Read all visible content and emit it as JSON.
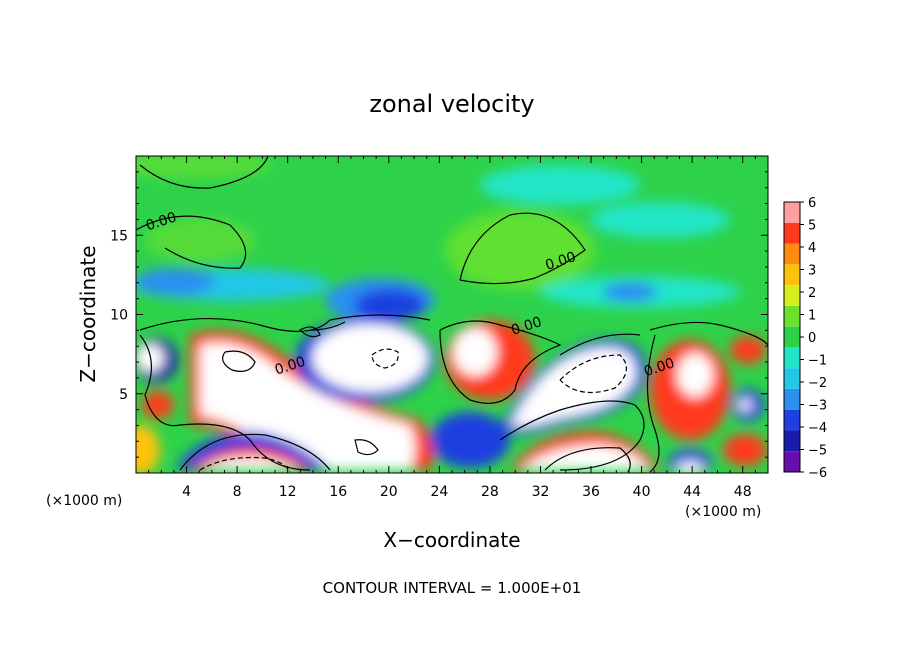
{
  "chart_data": {
    "type": "heatmap",
    "title": "zonal velocity",
    "xlabel": "X−coordinate",
    "ylabel": "Z−coordinate",
    "x_unit_left": "(×1000 m)",
    "x_unit_right": "(×1000 m)",
    "footer": "CONTOUR INTERVAL = 1.000E+01",
    "xlim": [
      0,
      50
    ],
    "ylim": [
      0,
      20
    ],
    "x_ticks": [
      4,
      8,
      12,
      16,
      20,
      24,
      28,
      32,
      36,
      40,
      44,
      48
    ],
    "x_tick_labels": [
      "4",
      "8",
      "12",
      "16",
      "20",
      "24",
      "28",
      "32",
      "36",
      "40",
      "44",
      "48"
    ],
    "y_ticks": [
      5,
      10,
      15
    ],
    "y_tick_labels": [
      "5",
      "10",
      "15"
    ],
    "colorbar": {
      "levels": [
        -6,
        -5,
        -4,
        -3,
        -2,
        -1,
        0,
        1,
        2,
        3,
        4,
        5,
        6
      ],
      "labels": [
        "−6",
        "−5",
        "−4",
        "−3",
        "−2",
        "−1",
        "0",
        "1",
        "2",
        "3",
        "4",
        "5",
        "6"
      ],
      "colors": [
        "#6a0dad",
        "#1a1aa8",
        "#1f3fe0",
        "#2b8ff0",
        "#22c7e8",
        "#22e6c8",
        "#2ed24a",
        "#6be22a",
        "#d8ee1a",
        "#ffc20a",
        "#ff8c10",
        "#ff3a1a",
        "#ff9fa0"
      ]
    },
    "contour_labels": [
      {
        "text": "0.00",
        "x": 2.1,
        "z": 15.6
      },
      {
        "text": "0.00",
        "x": 33.7,
        "z": 13.1
      },
      {
        "text": "0.00",
        "x": 31.0,
        "z": 9.0
      },
      {
        "text": "0.00",
        "x": 12.3,
        "z": 6.5
      },
      {
        "text": "0.00",
        "x": 41.5,
        "z": 6.4
      }
    ]
  }
}
